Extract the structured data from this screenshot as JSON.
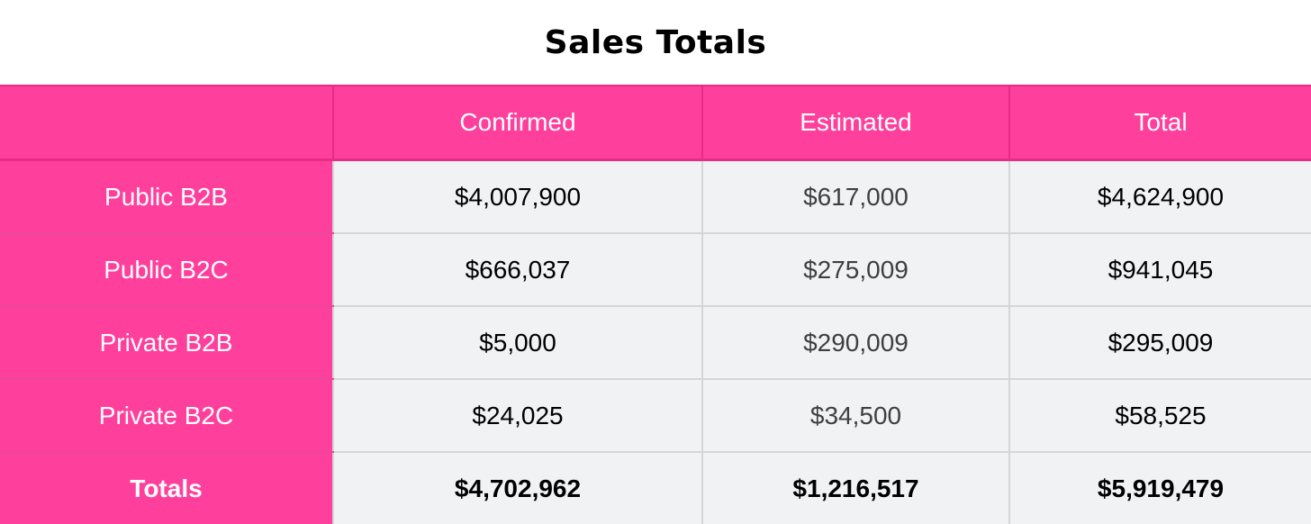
{
  "title": "Sales Totals",
  "columns": [
    "",
    "Confirmed",
    "Estimated",
    "Total"
  ],
  "rows": [
    {
      "label": "Public B2B",
      "confirmed": "$4,007,900",
      "estimated": "$617,000",
      "total": "$4,624,900"
    },
    {
      "label": "Public B2C",
      "confirmed": "$666,037",
      "estimated": "$275,009",
      "total": "$941,045"
    },
    {
      "label": "Private B2B",
      "confirmed": "$5,000",
      "estimated": "$290,009",
      "total": "$295,009"
    },
    {
      "label": "Private B2C",
      "confirmed": "$24,025",
      "estimated": "$34,500",
      "total": "$58,525"
    }
  ],
  "totals": {
    "label": "Totals",
    "confirmed": "$4,702,962",
    "estimated": "$1,216,517",
    "total": "$5,919,479"
  },
  "colors": {
    "header_bg": "#ff3f9c",
    "cell_bg": "#f1f2f4",
    "grid_line": "#d4d6da"
  }
}
